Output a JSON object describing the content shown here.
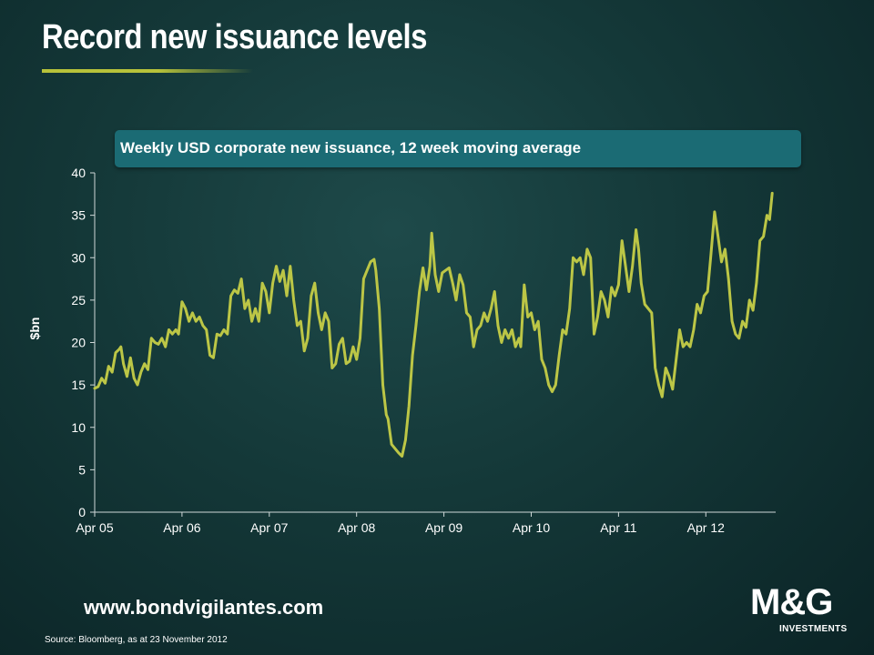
{
  "page": {
    "title": "Record new issuance levels",
    "url": "www.bondvigilantes.com",
    "source": "Source: Bloomberg, as at 23 November 2012",
    "logo": {
      "main": "M&G",
      "sub": "INVESTMENTS"
    }
  },
  "colors": {
    "line": "#bcc646",
    "accent": "#b7c23a",
    "subtitle_bg": "#1b6b74"
  },
  "chart_data": {
    "type": "line",
    "title": "Weekly USD corporate new issuance, 12 week moving average",
    "xlabel": "",
    "ylabel": "$bn",
    "ylim": [
      0,
      40
    ],
    "yticks": [
      0,
      5,
      10,
      15,
      20,
      25,
      30,
      35,
      40
    ],
    "xlim": [
      2005.0,
      2012.8
    ],
    "xticks": [
      {
        "label": "Apr 05",
        "value": 2005.0
      },
      {
        "label": "Apr 06",
        "value": 2006.0
      },
      {
        "label": "Apr 07",
        "value": 2007.0
      },
      {
        "label": "Apr 08",
        "value": 2008.0
      },
      {
        "label": "Apr 09",
        "value": 2009.0
      },
      {
        "label": "Apr 10",
        "value": 2010.0
      },
      {
        "label": "Apr 11",
        "value": 2011.0
      },
      {
        "label": "Apr 12",
        "value": 2012.0
      }
    ],
    "series": [
      {
        "name": "Weekly USD corporate new issuance, 12 week moving average",
        "points": [
          [
            2005.0,
            14.6
          ],
          [
            2005.04,
            14.8
          ],
          [
            2005.08,
            15.8
          ],
          [
            2005.12,
            15.2
          ],
          [
            2005.16,
            17.2
          ],
          [
            2005.2,
            16.5
          ],
          [
            2005.24,
            18.8
          ],
          [
            2005.28,
            19.2
          ],
          [
            2005.3,
            19.5
          ],
          [
            2005.33,
            17.5
          ],
          [
            2005.37,
            16.0
          ],
          [
            2005.41,
            18.2
          ],
          [
            2005.45,
            15.8
          ],
          [
            2005.49,
            15.0
          ],
          [
            2005.53,
            16.5
          ],
          [
            2005.57,
            17.5
          ],
          [
            2005.61,
            16.8
          ],
          [
            2005.65,
            20.5
          ],
          [
            2005.69,
            20.0
          ],
          [
            2005.73,
            19.8
          ],
          [
            2005.77,
            20.5
          ],
          [
            2005.81,
            19.5
          ],
          [
            2005.85,
            21.5
          ],
          [
            2005.89,
            21.0
          ],
          [
            2005.93,
            21.5
          ],
          [
            2005.96,
            21.0
          ],
          [
            2006.0,
            24.8
          ],
          [
            2006.04,
            24.0
          ],
          [
            2006.08,
            22.5
          ],
          [
            2006.12,
            23.5
          ],
          [
            2006.16,
            22.5
          ],
          [
            2006.2,
            23.0
          ],
          [
            2006.24,
            22.0
          ],
          [
            2006.28,
            21.5
          ],
          [
            2006.32,
            18.5
          ],
          [
            2006.36,
            18.2
          ],
          [
            2006.4,
            21.0
          ],
          [
            2006.44,
            20.8
          ],
          [
            2006.48,
            21.5
          ],
          [
            2006.52,
            21.0
          ],
          [
            2006.56,
            25.5
          ],
          [
            2006.6,
            26.2
          ],
          [
            2006.64,
            25.8
          ],
          [
            2006.68,
            27.5
          ],
          [
            2006.72,
            24.0
          ],
          [
            2006.76,
            25.0
          ],
          [
            2006.8,
            22.5
          ],
          [
            2006.84,
            24.0
          ],
          [
            2006.88,
            22.5
          ],
          [
            2006.92,
            27.0
          ],
          [
            2006.96,
            26.0
          ],
          [
            2007.0,
            23.5
          ],
          [
            2007.04,
            27.0
          ],
          [
            2007.08,
            29.0
          ],
          [
            2007.12,
            27.2
          ],
          [
            2007.16,
            28.5
          ],
          [
            2007.2,
            25.5
          ],
          [
            2007.24,
            29.0
          ],
          [
            2007.28,
            25.0
          ],
          [
            2007.32,
            22.0
          ],
          [
            2007.36,
            22.5
          ],
          [
            2007.4,
            19.0
          ],
          [
            2007.44,
            20.5
          ],
          [
            2007.48,
            25.5
          ],
          [
            2007.52,
            27.0
          ],
          [
            2007.56,
            23.5
          ],
          [
            2007.6,
            21.5
          ],
          [
            2007.64,
            23.5
          ],
          [
            2007.68,
            22.5
          ],
          [
            2007.72,
            17.0
          ],
          [
            2007.76,
            17.5
          ],
          [
            2007.8,
            19.8
          ],
          [
            2007.84,
            20.5
          ],
          [
            2007.88,
            17.5
          ],
          [
            2007.92,
            17.8
          ],
          [
            2007.96,
            19.5
          ],
          [
            2008.0,
            18.0
          ],
          [
            2008.04,
            20.5
          ],
          [
            2008.08,
            27.5
          ],
          [
            2008.12,
            28.5
          ],
          [
            2008.16,
            29.5
          ],
          [
            2008.2,
            29.8
          ],
          [
            2008.22,
            28.5
          ],
          [
            2008.26,
            24.0
          ],
          [
            2008.3,
            15.0
          ],
          [
            2008.34,
            11.5
          ],
          [
            2008.36,
            11.0
          ],
          [
            2008.4,
            8.0
          ],
          [
            2008.44,
            7.5
          ],
          [
            2008.48,
            7.0
          ],
          [
            2008.52,
            6.6
          ],
          [
            2008.56,
            8.5
          ],
          [
            2008.6,
            12.5
          ],
          [
            2008.64,
            18.5
          ],
          [
            2008.68,
            22.0
          ],
          [
            2008.72,
            26.0
          ],
          [
            2008.76,
            28.8
          ],
          [
            2008.8,
            26.2
          ],
          [
            2008.84,
            29.0
          ],
          [
            2008.86,
            32.9
          ],
          [
            2008.9,
            28.0
          ],
          [
            2008.94,
            26.0
          ],
          [
            2008.98,
            28.2
          ],
          [
            2009.02,
            28.5
          ],
          [
            2009.06,
            28.8
          ],
          [
            2009.1,
            27.0
          ],
          [
            2009.14,
            25.0
          ],
          [
            2009.18,
            28.0
          ],
          [
            2009.22,
            26.8
          ],
          [
            2009.26,
            23.5
          ],
          [
            2009.3,
            23.0
          ],
          [
            2009.34,
            19.5
          ],
          [
            2009.38,
            21.5
          ],
          [
            2009.42,
            22.0
          ],
          [
            2009.46,
            23.5
          ],
          [
            2009.5,
            22.5
          ],
          [
            2009.54,
            24.0
          ],
          [
            2009.58,
            26.0
          ],
          [
            2009.62,
            22.0
          ],
          [
            2009.66,
            20.0
          ],
          [
            2009.7,
            21.5
          ],
          [
            2009.74,
            20.5
          ],
          [
            2009.78,
            21.5
          ],
          [
            2009.82,
            19.5
          ],
          [
            2009.86,
            20.5
          ],
          [
            2009.88,
            19.5
          ],
          [
            2009.92,
            26.8
          ],
          [
            2009.96,
            23.0
          ],
          [
            2010.0,
            23.5
          ],
          [
            2010.04,
            21.5
          ],
          [
            2010.08,
            22.5
          ],
          [
            2010.12,
            18.0
          ],
          [
            2010.16,
            17.0
          ],
          [
            2010.2,
            15.0
          ],
          [
            2010.24,
            14.2
          ],
          [
            2010.28,
            15.0
          ],
          [
            2010.32,
            18.5
          ],
          [
            2010.36,
            21.5
          ],
          [
            2010.4,
            21.0
          ],
          [
            2010.44,
            24.0
          ],
          [
            2010.48,
            30.0
          ],
          [
            2010.52,
            29.5
          ],
          [
            2010.56,
            30.0
          ],
          [
            2010.6,
            28.0
          ],
          [
            2010.64,
            31.0
          ],
          [
            2010.68,
            30.0
          ],
          [
            2010.72,
            21.0
          ],
          [
            2010.76,
            23.0
          ],
          [
            2010.8,
            26.0
          ],
          [
            2010.84,
            25.0
          ],
          [
            2010.88,
            23.0
          ],
          [
            2010.92,
            26.5
          ],
          [
            2010.96,
            25.5
          ],
          [
            2011.0,
            26.8
          ],
          [
            2011.04,
            32.0
          ],
          [
            2011.08,
            29.0
          ],
          [
            2011.12,
            26.0
          ],
          [
            2011.16,
            29.0
          ],
          [
            2011.2,
            33.3
          ],
          [
            2011.23,
            31.0
          ],
          [
            2011.26,
            27.0
          ],
          [
            2011.3,
            24.5
          ],
          [
            2011.34,
            24.0
          ],
          [
            2011.38,
            23.5
          ],
          [
            2011.42,
            17.0
          ],
          [
            2011.46,
            15.0
          ],
          [
            2011.5,
            13.6
          ],
          [
            2011.54,
            17.0
          ],
          [
            2011.58,
            16.0
          ],
          [
            2011.62,
            14.5
          ],
          [
            2011.66,
            18.0
          ],
          [
            2011.7,
            21.5
          ],
          [
            2011.74,
            19.5
          ],
          [
            2011.78,
            20.0
          ],
          [
            2011.82,
            19.5
          ],
          [
            2011.86,
            21.5
          ],
          [
            2011.9,
            24.5
          ],
          [
            2011.94,
            23.5
          ],
          [
            2011.98,
            25.5
          ],
          [
            2012.02,
            26.0
          ],
          [
            2012.06,
            30.5
          ],
          [
            2012.1,
            35.4
          ],
          [
            2012.14,
            32.5
          ],
          [
            2012.18,
            29.5
          ],
          [
            2012.22,
            31.0
          ],
          [
            2012.26,
            27.5
          ],
          [
            2012.3,
            22.5
          ],
          [
            2012.34,
            21.0
          ],
          [
            2012.38,
            20.5
          ],
          [
            2012.42,
            22.5
          ],
          [
            2012.46,
            21.8
          ],
          [
            2012.5,
            25.0
          ],
          [
            2012.54,
            23.8
          ],
          [
            2012.58,
            27.0
          ],
          [
            2012.62,
            32.0
          ],
          [
            2012.66,
            32.5
          ],
          [
            2012.7,
            35.0
          ],
          [
            2012.73,
            34.5
          ],
          [
            2012.76,
            37.6
          ]
        ]
      }
    ]
  }
}
